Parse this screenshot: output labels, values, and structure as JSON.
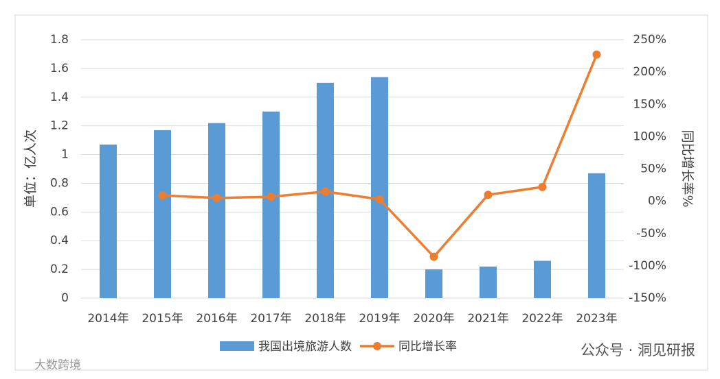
{
  "chart_data": {
    "type": "bar-line",
    "y_label": "单位：亿人次",
    "y2_label": "同比增长率%",
    "categories": [
      "2014年",
      "2015年",
      "2016年",
      "2017年",
      "2018年",
      "2019年",
      "2020年",
      "2021年",
      "2022年",
      "2023年"
    ],
    "series": [
      {
        "name": "我国出境旅游人数",
        "type": "bar",
        "color": "#5b9bd5",
        "values": [
          1.07,
          1.17,
          1.22,
          1.3,
          1.5,
          1.54,
          0.2,
          0.22,
          0.26,
          0.87
        ]
      },
      {
        "name": "同比增长率",
        "type": "line",
        "axis": "y2",
        "color": "#ed7d31",
        "values": [
          null,
          9,
          5,
          7,
          15,
          3,
          -86,
          10,
          22,
          227
        ]
      }
    ],
    "ylim": [
      0,
      1.8
    ],
    "yticks": [
      0,
      0.2,
      0.4,
      0.6,
      0.8,
      1,
      1.2,
      1.4,
      1.6,
      1.8
    ],
    "y2lim": [
      -150,
      250
    ],
    "y2ticks": [
      {
        "value": -150,
        "label": "-150%"
      },
      {
        "value": -100,
        "label": "-100%"
      },
      {
        "value": -50,
        "label": "-50%"
      },
      {
        "value": 0,
        "label": "0%"
      },
      {
        "value": 50,
        "label": "50%"
      },
      {
        "value": 100,
        "label": "100%"
      },
      {
        "value": 150,
        "label": "150%"
      },
      {
        "value": 200,
        "label": "200%"
      },
      {
        "value": 250,
        "label": "250%"
      }
    ],
    "grid": true,
    "legend": "bottom",
    "watermarks": [
      "公众号 · 洞见研报",
      "大数跨境"
    ]
  }
}
